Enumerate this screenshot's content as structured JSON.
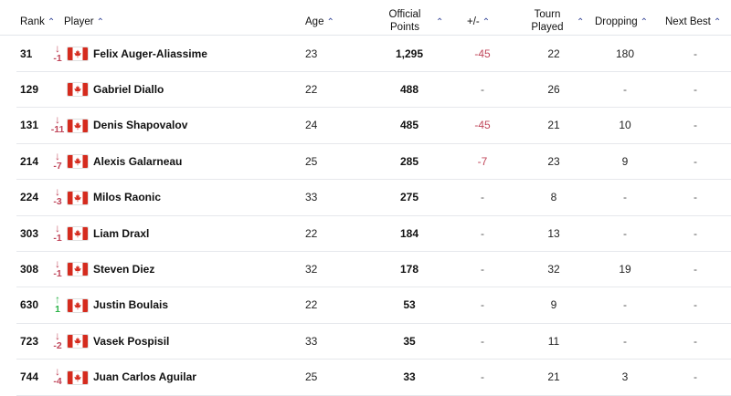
{
  "headers": {
    "rank": "Rank",
    "player": "Player",
    "age": "Age",
    "points_line1": "Official",
    "points_line2": "Points",
    "plusminus": "+/-",
    "tourn_line1": "Tourn",
    "tourn_line2": "Played",
    "dropping": "Dropping",
    "next_best": "Next Best",
    "sort_icon": "chevron-up-icon"
  },
  "colors": {
    "down": "#c0465a",
    "up": "#2eb34a",
    "flag_red": "#d52b1e"
  },
  "rows": [
    {
      "rank": "31",
      "move_dir": "down",
      "move": "-1",
      "player": "Felix Auger-Aliassime",
      "age": "23",
      "points": "1,295",
      "plus_minus": "-45",
      "tourn_played": "22",
      "dropping": "180",
      "next_best": "-"
    },
    {
      "rank": "129",
      "move_dir": "none",
      "move": "",
      "player": "Gabriel Diallo",
      "age": "22",
      "points": "488",
      "plus_minus": "-",
      "tourn_played": "26",
      "dropping": "-",
      "next_best": "-"
    },
    {
      "rank": "131",
      "move_dir": "down",
      "move": "-11",
      "player": "Denis Shapovalov",
      "age": "24",
      "points": "485",
      "plus_minus": "-45",
      "tourn_played": "21",
      "dropping": "10",
      "next_best": "-"
    },
    {
      "rank": "214",
      "move_dir": "down",
      "move": "-7",
      "player": "Alexis Galarneau",
      "age": "25",
      "points": "285",
      "plus_minus": "-7",
      "tourn_played": "23",
      "dropping": "9",
      "next_best": "-"
    },
    {
      "rank": "224",
      "move_dir": "down",
      "move": "-3",
      "player": "Milos Raonic",
      "age": "33",
      "points": "275",
      "plus_minus": "-",
      "tourn_played": "8",
      "dropping": "-",
      "next_best": "-"
    },
    {
      "rank": "303",
      "move_dir": "down",
      "move": "-1",
      "player": "Liam Draxl",
      "age": "22",
      "points": "184",
      "plus_minus": "-",
      "tourn_played": "13",
      "dropping": "-",
      "next_best": "-"
    },
    {
      "rank": "308",
      "move_dir": "down",
      "move": "-1",
      "player": "Steven Diez",
      "age": "32",
      "points": "178",
      "plus_minus": "-",
      "tourn_played": "32",
      "dropping": "19",
      "next_best": "-"
    },
    {
      "rank": "630",
      "move_dir": "up",
      "move": "1",
      "player": "Justin Boulais",
      "age": "22",
      "points": "53",
      "plus_minus": "-",
      "tourn_played": "9",
      "dropping": "-",
      "next_best": "-"
    },
    {
      "rank": "723",
      "move_dir": "down",
      "move": "-2",
      "player": "Vasek Pospisil",
      "age": "33",
      "points": "35",
      "plus_minus": "-",
      "tourn_played": "11",
      "dropping": "-",
      "next_best": "-"
    },
    {
      "rank": "744",
      "move_dir": "down",
      "move": "-4",
      "player": "Juan Carlos Aguilar",
      "age": "25",
      "points": "33",
      "plus_minus": "-",
      "tourn_played": "21",
      "dropping": "3",
      "next_best": "-"
    }
  ]
}
